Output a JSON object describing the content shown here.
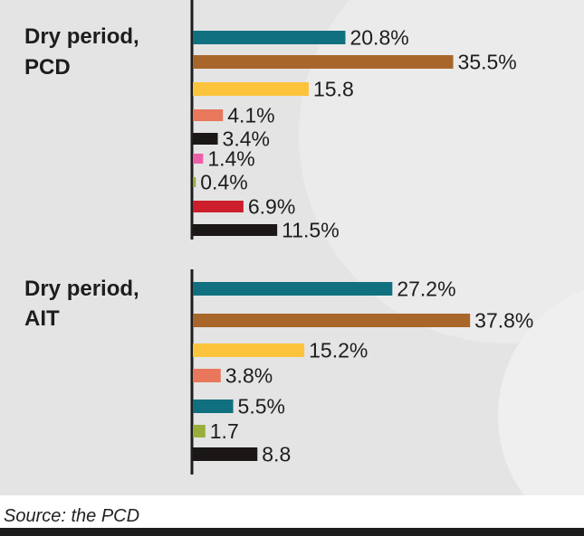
{
  "chart_data": [
    {
      "type": "bar",
      "title_lines": [
        "Dry period,",
        "PCD"
      ],
      "bars": [
        {
          "value": 20.8,
          "label": "20.8%",
          "color": "#10707f"
        },
        {
          "value": 35.5,
          "label": "35.5%",
          "color": "#a8662a"
        },
        {
          "value": 15.8,
          "label": "15.8",
          "color": "#fcc33c"
        },
        {
          "value": 4.1,
          "label": "4.1%",
          "color": "#e8775c"
        },
        {
          "value": 3.4,
          "label": "3.4%",
          "color": "#1b1717"
        },
        {
          "value": 1.4,
          "label": "1.4%",
          "color": "#ee5faa"
        },
        {
          "value": 0.4,
          "label": "0.4%",
          "color": "#98ad3c"
        },
        {
          "value": 6.9,
          "label": "6.9%",
          "color": "#cc1f2b"
        },
        {
          "value": 11.5,
          "label": "11.5%",
          "color": "#1b1717"
        }
      ]
    },
    {
      "type": "bar",
      "title_lines": [
        "Dry period,",
        "AIT"
      ],
      "bars": [
        {
          "value": 27.2,
          "label": "27.2%",
          "color": "#10707f"
        },
        {
          "value": 37.8,
          "label": "37.8%",
          "color": "#a8662a"
        },
        {
          "value": 15.2,
          "label": "15.2%",
          "color": "#fcc33c"
        },
        {
          "value": 3.8,
          "label": "3.8%",
          "color": "#e8775c"
        },
        {
          "value": 5.5,
          "label": "5.5%",
          "color": "#10707f"
        },
        {
          "value": 1.7,
          "label": "1.7",
          "color": "#98ad3c"
        },
        {
          "value": 8.8,
          "label": "8.8",
          "color": "#1b1717"
        }
      ]
    }
  ],
  "source": "Source: the PCD"
}
